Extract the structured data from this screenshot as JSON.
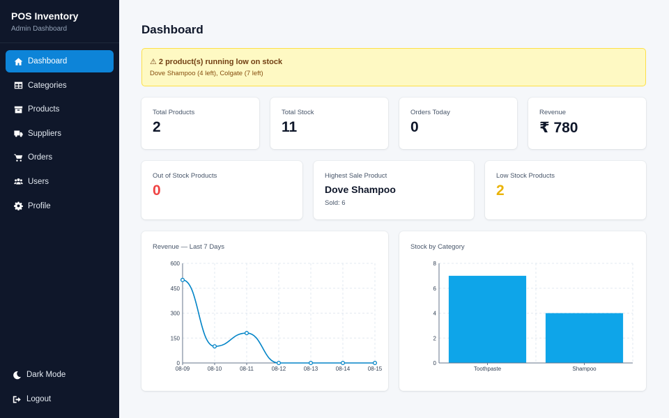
{
  "app": {
    "title": "POS Inventory",
    "subtitle": "Admin Dashboard"
  },
  "sidebar": {
    "items": [
      {
        "label": "Dashboard",
        "icon": "home-icon",
        "active": true
      },
      {
        "label": "Categories",
        "icon": "table-icon"
      },
      {
        "label": "Products",
        "icon": "box-icon"
      },
      {
        "label": "Suppliers",
        "icon": "truck-icon"
      },
      {
        "label": "Orders",
        "icon": "cart-icon"
      },
      {
        "label": "Users",
        "icon": "users-icon"
      },
      {
        "label": "Profile",
        "icon": "gear-icon"
      }
    ],
    "bottom": [
      {
        "label": "Dark Mode",
        "icon": "moon-icon"
      },
      {
        "label": "Logout",
        "icon": "logout-icon"
      }
    ]
  },
  "page": {
    "title": "Dashboard"
  },
  "alert": {
    "title": "⚠ 2 product(s) running low on stock",
    "detail": "Dove Shampoo (4 left), Colgate (7 left)"
  },
  "stats": {
    "total_products": {
      "label": "Total Products",
      "value": "2"
    },
    "total_stock": {
      "label": "Total Stock",
      "value": "11"
    },
    "orders_today": {
      "label": "Orders Today",
      "value": "0"
    },
    "revenue": {
      "label": "Revenue",
      "value": "₹ 780"
    },
    "out_of_stock": {
      "label": "Out of Stock Products",
      "value": "0"
    },
    "highest_sale": {
      "label": "Highest Sale Product",
      "name": "Dove Shampoo",
      "sub": "Sold: 6"
    },
    "low_stock": {
      "label": "Low Stock Products",
      "value": "2"
    }
  },
  "colors": {
    "accent": "#0d84d8",
    "bar": "#0ea5e9",
    "line": "#0284c7",
    "danger": "#ef4444",
    "warning": "#eab308"
  },
  "chart_data": [
    {
      "type": "line",
      "title": "Revenue — Last 7 Days",
      "x": [
        "08-09",
        "08-10",
        "08-11",
        "08-12",
        "08-13",
        "08-14",
        "08-15"
      ],
      "values": [
        500,
        100,
        180,
        0,
        0,
        0,
        0
      ],
      "ylim": [
        0,
        600
      ],
      "yticks": [
        0,
        150,
        300,
        450,
        600
      ],
      "grid": true
    },
    {
      "type": "bar",
      "title": "Stock by Category",
      "categories": [
        "Toothpaste",
        "Shampoo"
      ],
      "values": [
        7,
        4
      ],
      "ylim": [
        0,
        8
      ],
      "yticks": [
        0,
        2,
        4,
        6,
        8
      ],
      "grid": true
    }
  ]
}
